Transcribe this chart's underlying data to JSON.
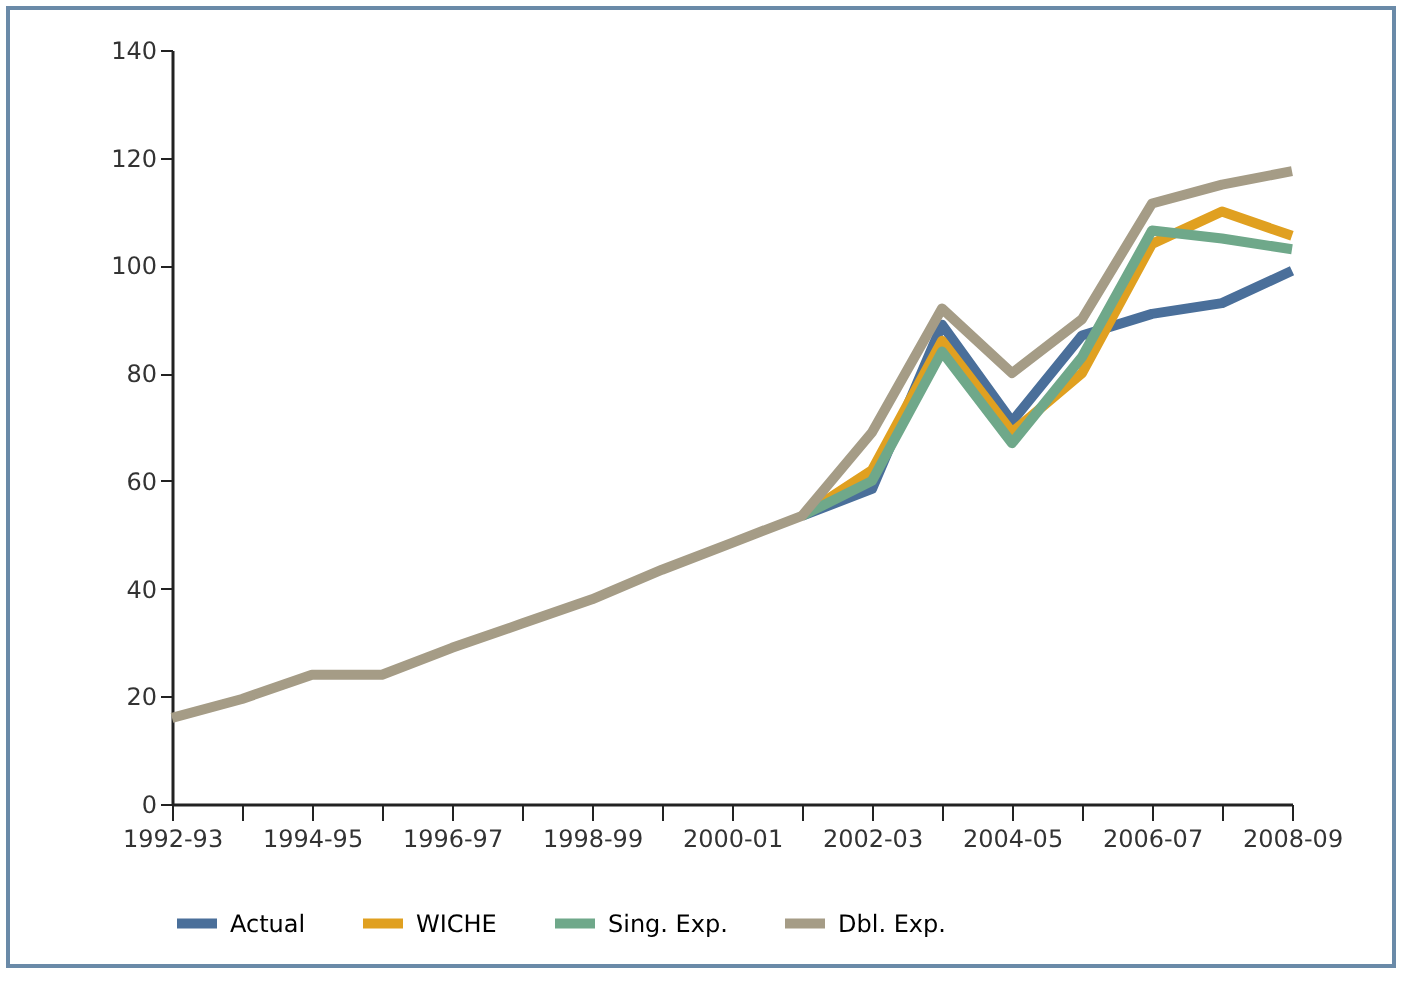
{
  "chart_data": {
    "type": "line",
    "categories": [
      "1992-93",
      null,
      "1994-95",
      null,
      "1996-97",
      null,
      "1998-99",
      null,
      "2000-01",
      null,
      "2002-03",
      null,
      "2004-05",
      null,
      "2006-07",
      null,
      "2008-09"
    ],
    "series": [
      {
        "name": "Actual",
        "color": "#4a6f9a",
        "values": [
          null,
          null,
          null,
          null,
          null,
          null,
          null,
          null,
          null,
          53.5,
          58.5,
          89,
          71,
          87,
          91,
          93,
          99
        ]
      },
      {
        "name": "WICHE",
        "color": "#e0a020",
        "values": [
          null,
          null,
          null,
          null,
          null,
          null,
          null,
          null,
          null,
          53.5,
          62,
          86,
          69,
          80,
          104,
          110,
          105.5
        ]
      },
      {
        "name": "Sing. Exp.",
        "color": "#6fa88a",
        "values": [
          null,
          null,
          null,
          null,
          null,
          null,
          null,
          null,
          null,
          53.5,
          60,
          84,
          67,
          83,
          106.5,
          105,
          103
        ]
      },
      {
        "name": "Dbl. Exp.",
        "color": "#a59c86",
        "values": [
          16,
          19.5,
          24,
          24,
          29,
          33.5,
          38,
          43.5,
          48.5,
          53.5,
          69,
          92,
          80,
          90,
          111.5,
          115,
          117.5
        ]
      }
    ],
    "ylim": [
      0,
      140
    ],
    "yticks": [
      0,
      20,
      40,
      60,
      80,
      100,
      120,
      140
    ],
    "grid": false,
    "legend": "bottom",
    "marker": "none",
    "line_style": "solid"
  }
}
